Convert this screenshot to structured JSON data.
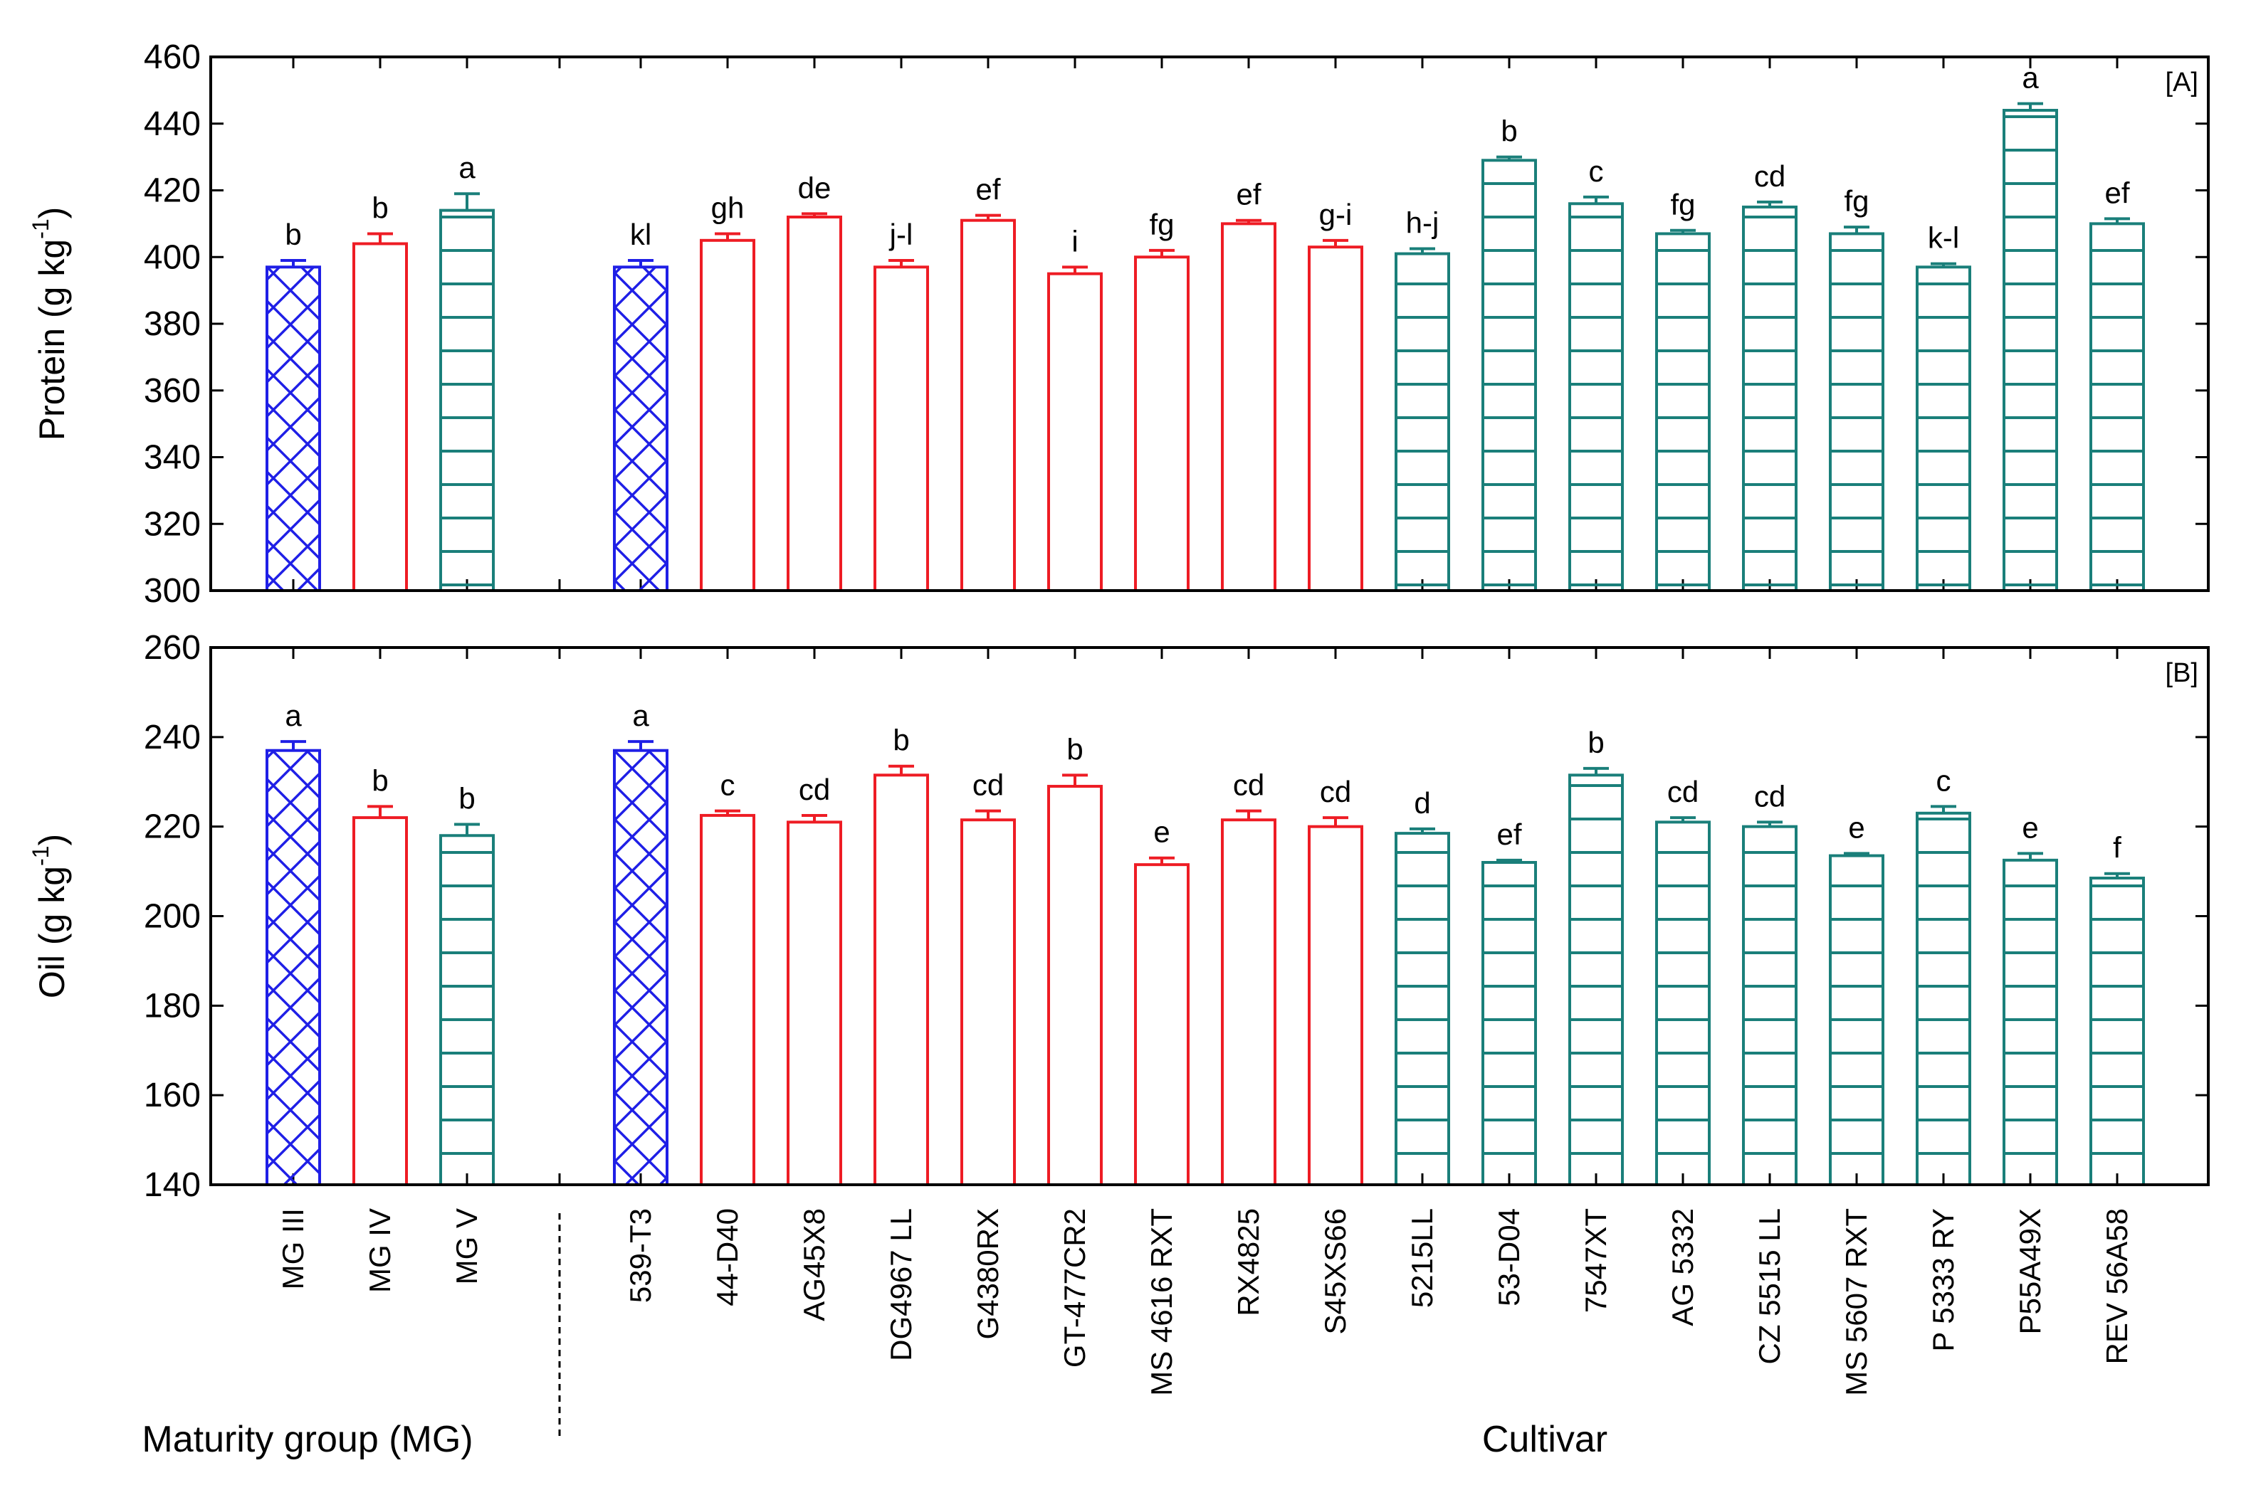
{
  "chart_data": [
    {
      "id": "A",
      "type": "bar",
      "panel_label": "[A]",
      "ylabel": "Protein (g kg",
      "ylabel_sup": "-1",
      "ylabel_close": ")",
      "ylim": [
        300,
        460
      ],
      "yticks": [
        300,
        320,
        340,
        360,
        380,
        400,
        420,
        440,
        460
      ],
      "bars": [
        {
          "category": "MG III",
          "group": "III",
          "value": 397,
          "error": 2,
          "letter": "b"
        },
        {
          "category": "MG IV",
          "group": "IV",
          "value": 404,
          "error": 3,
          "letter": "b"
        },
        {
          "category": "MG V",
          "group": "V",
          "value": 414,
          "error": 5,
          "letter": "a"
        },
        {
          "category": "539-T3",
          "group": "III",
          "value": 397,
          "error": 2,
          "letter": "kl"
        },
        {
          "category": "44-D40",
          "group": "IV",
          "value": 405,
          "error": 2,
          "letter": "gh"
        },
        {
          "category": "AG45X8",
          "group": "IV",
          "value": 412,
          "error": 1,
          "letter": "de"
        },
        {
          "category": "DG4967 LL",
          "group": "IV",
          "value": 397,
          "error": 2,
          "letter": "j-l"
        },
        {
          "category": "G4380RX",
          "group": "IV",
          "value": 411,
          "error": 1.5,
          "letter": "ef"
        },
        {
          "category": "GT-477CR2",
          "group": "IV",
          "value": 395,
          "error": 2,
          "letter": "i"
        },
        {
          "category": "MS 4616 RXT",
          "group": "IV",
          "value": 400,
          "error": 2,
          "letter": "fg"
        },
        {
          "category": "RX4825",
          "group": "IV",
          "value": 410,
          "error": 1,
          "letter": "ef"
        },
        {
          "category": "S45XS66",
          "group": "IV",
          "value": 403,
          "error": 2,
          "letter": "g-i"
        },
        {
          "category": "5215LL",
          "group": "V",
          "value": 401,
          "error": 1.5,
          "letter": "h-j"
        },
        {
          "category": "53-D04",
          "group": "V",
          "value": 429,
          "error": 1,
          "letter": "b"
        },
        {
          "category": "7547XT",
          "group": "V",
          "value": 416,
          "error": 2,
          "letter": "c"
        },
        {
          "category": "AG 5332",
          "group": "V",
          "value": 407,
          "error": 1,
          "letter": "fg"
        },
        {
          "category": "CZ 5515 LL",
          "group": "V",
          "value": 415,
          "error": 1.5,
          "letter": "cd"
        },
        {
          "category": "MS 5607 RXT",
          "group": "V",
          "value": 407,
          "error": 2,
          "letter": "fg"
        },
        {
          "category": "P 5333 RY",
          "group": "V",
          "value": 397,
          "error": 1,
          "letter": "k-l"
        },
        {
          "category": "P55A49X",
          "group": "V",
          "value": 444,
          "error": 2,
          "letter": "a"
        },
        {
          "category": "REV 56A58",
          "group": "V",
          "value": 410,
          "error": 1.5,
          "letter": "ef"
        }
      ]
    },
    {
      "id": "B",
      "type": "bar",
      "panel_label": "[B]",
      "ylabel": "Oil (g kg",
      "ylabel_sup": "-1",
      "ylabel_close": ")",
      "ylim": [
        140,
        260
      ],
      "yticks": [
        140,
        160,
        180,
        200,
        220,
        240,
        260
      ],
      "bars": [
        {
          "category": "MG III",
          "group": "III",
          "value": 237,
          "error": 2,
          "letter": "a"
        },
        {
          "category": "MG IV",
          "group": "IV",
          "value": 222,
          "error": 2.5,
          "letter": "b"
        },
        {
          "category": "MG V",
          "group": "V",
          "value": 218,
          "error": 2.5,
          "letter": "b"
        },
        {
          "category": "539-T3",
          "group": "III",
          "value": 237,
          "error": 2,
          "letter": "a"
        },
        {
          "category": "44-D40",
          "group": "IV",
          "value": 222.5,
          "error": 1,
          "letter": "c"
        },
        {
          "category": "AG45X8",
          "group": "IV",
          "value": 221,
          "error": 1.5,
          "letter": "cd"
        },
        {
          "category": "DG4967 LL",
          "group": "IV",
          "value": 231.5,
          "error": 2,
          "letter": "b"
        },
        {
          "category": "G4380RX",
          "group": "IV",
          "value": 221.5,
          "error": 2,
          "letter": "cd"
        },
        {
          "category": "GT-477CR2",
          "group": "IV",
          "value": 229,
          "error": 2.5,
          "letter": "b"
        },
        {
          "category": "MS 4616 RXT",
          "group": "IV",
          "value": 211.5,
          "error": 1.5,
          "letter": "e"
        },
        {
          "category": "RX4825",
          "group": "IV",
          "value": 221.5,
          "error": 2,
          "letter": "cd"
        },
        {
          "category": "S45XS66",
          "group": "IV",
          "value": 220,
          "error": 2,
          "letter": "cd"
        },
        {
          "category": "5215LL",
          "group": "V",
          "value": 218.5,
          "error": 1,
          "letter": "d"
        },
        {
          "category": "53-D04",
          "group": "V",
          "value": 212,
          "error": 0.5,
          "letter": "ef"
        },
        {
          "category": "7547XT",
          "group": "V",
          "value": 231.5,
          "error": 1.5,
          "letter": "b"
        },
        {
          "category": "AG 5332",
          "group": "V",
          "value": 221,
          "error": 1,
          "letter": "cd"
        },
        {
          "category": "CZ 5515 LL",
          "group": "V",
          "value": 220,
          "error": 1,
          "letter": "cd"
        },
        {
          "category": "MS 5607 RXT",
          "group": "V",
          "value": 213.5,
          "error": 0.5,
          "letter": "e"
        },
        {
          "category": "P 5333 RY",
          "group": "V",
          "value": 223,
          "error": 1.5,
          "letter": "c"
        },
        {
          "category": "P55A49X",
          "group": "V",
          "value": 212.5,
          "error": 1.5,
          "letter": "e"
        },
        {
          "category": "REV 56A58",
          "group": "V",
          "value": 208.5,
          "error": 1,
          "letter": "f"
        }
      ]
    }
  ],
  "xaxis": {
    "categories": [
      "MG III",
      "MG IV",
      "MG V",
      "539-T3",
      "44-D40",
      "AG45X8",
      "DG4967 LL",
      "G4380RX",
      "GT-477CR2",
      "MS 4616 RXT",
      "RX4825",
      "S45XS66",
      "5215LL",
      "53-D04",
      "7547XT",
      "AG 5332",
      "CZ 5515 LL",
      "MS 5607 RXT",
      "P 5333 RY",
      "P55A49X",
      "REV 56A58"
    ],
    "left_title": "Maturity group (MG)",
    "right_title": "Cultivar"
  },
  "colors": {
    "III": "#1f1fe6",
    "IV": "#ee1c24",
    "V": "#1a7f7a"
  },
  "patterns": {
    "III": "crosshatch",
    "IV": "none",
    "V": "horizontal-lines"
  }
}
